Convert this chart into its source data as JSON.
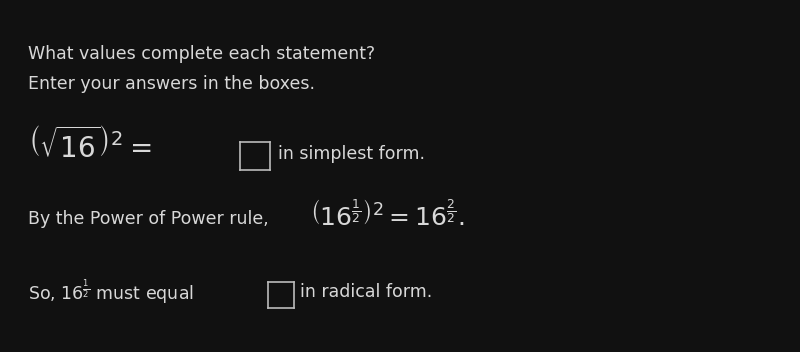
{
  "background_color": "#111111",
  "text_color": "#d8d8d8",
  "title_line1": "What values complete each statement?",
  "title_line2": "Enter your answers in the boxes.",
  "font_size_title": 12.5,
  "font_size_math_line1": 20,
  "font_size_math_line2": 18,
  "font_size_text_line2": 12.5,
  "font_size_text_line3": 12.5,
  "box_edgecolor": "#bbbbbb",
  "fig_width": 8.0,
  "fig_height": 3.52,
  "dpi": 100,
  "line1_math": "$\\left(\\sqrt{16}\\right)^{2}=$",
  "line1_text": "in simplest form.",
  "line2_text": "By the Power of Power rule,",
  "line2_math": "$\\left(16^{\\frac{1}{2}}\\right)^{2}=16^{\\frac{2}{2}}.$",
  "line3_math_text": "So, $16^{\\frac{1}{2}}$ must equal",
  "line3_text": "in radical form."
}
